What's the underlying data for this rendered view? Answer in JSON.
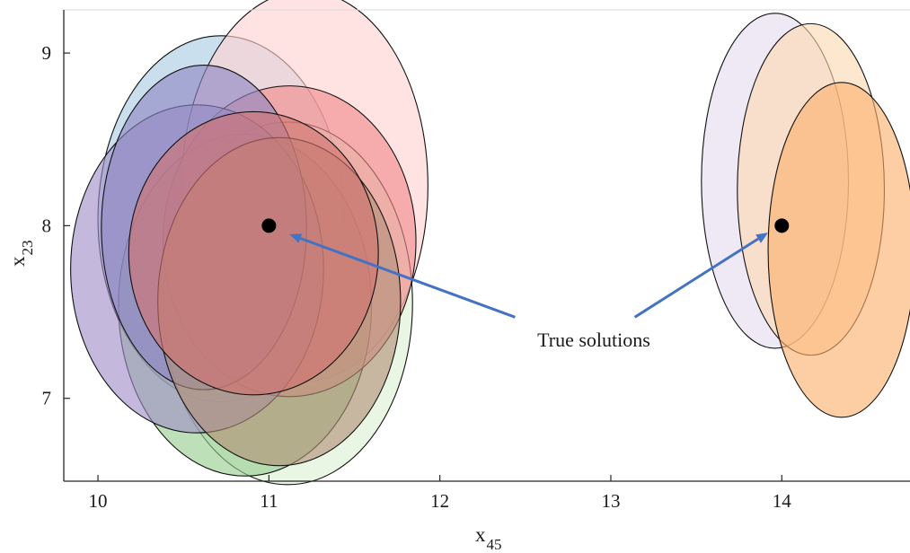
{
  "chart_data": {
    "type": "scatter",
    "title": "",
    "xlabel": {
      "base": "x",
      "sub": "45"
    },
    "ylabel": {
      "base": "x",
      "sub": "23"
    },
    "xlim": [
      9.8,
      14.75
    ],
    "ylim": [
      6.52,
      9.25
    ],
    "xticks": [
      10,
      11,
      12,
      13,
      14
    ],
    "yticks": [
      7,
      8,
      9
    ],
    "xtick_labels": [
      "10",
      "11",
      "12",
      "13",
      "14"
    ],
    "ytick_labels": [
      "7",
      "8",
      "9"
    ],
    "grid": false,
    "ellipses": [
      {
        "cx": 10.72,
        "cy": 8.04,
        "rx": 0.72,
        "ry": 1.06,
        "fill": "#a9cbe2"
      },
      {
        "cx": 11.21,
        "cy": 8.23,
        "rx": 0.72,
        "ry": 1.13,
        "fill": "#ffd2d2"
      },
      {
        "cx": 11.11,
        "cy": 7.55,
        "rx": 0.73,
        "ry": 1.05,
        "fill": "#dcf0d4"
      },
      {
        "cx": 10.86,
        "cy": 7.54,
        "rx": 0.74,
        "ry": 0.99,
        "fill": "#96cd8e"
      },
      {
        "cx": 11.12,
        "cy": 7.91,
        "rx": 0.74,
        "ry": 0.9,
        "fill": "#f18a8a"
      },
      {
        "cx": 10.58,
        "cy": 7.75,
        "rx": 0.74,
        "ry": 0.95,
        "fill": "#a08ec6"
      },
      {
        "cx": 10.62,
        "cy": 7.99,
        "rx": 0.6,
        "ry": 0.94,
        "fill": "#8e86c4"
      },
      {
        "cx": 11.06,
        "cy": 7.56,
        "rx": 0.71,
        "ry": 0.95,
        "fill": "#b28f78"
      },
      {
        "cx": 10.91,
        "cy": 7.84,
        "rx": 0.73,
        "ry": 0.82,
        "fill": "#d2726f"
      },
      {
        "cx": 13.96,
        "cy": 8.26,
        "rx": 0.43,
        "ry": 0.97,
        "fill": "#e4dcef"
      },
      {
        "cx": 14.17,
        "cy": 8.21,
        "rx": 0.43,
        "ry": 0.96,
        "fill": "#fcd9b2"
      },
      {
        "cx": 14.35,
        "cy": 7.86,
        "rx": 0.43,
        "ry": 0.97,
        "fill": "#fbb06c"
      }
    ],
    "points": [
      {
        "x": 11,
        "y": 8
      },
      {
        "x": 14,
        "y": 8
      }
    ],
    "annotation": {
      "text": "True solutions",
      "x": 12.9,
      "y": 7.3,
      "arrows": [
        {
          "from": [
            12.44,
            7.47
          ],
          "to": [
            11.12,
            7.95
          ]
        },
        {
          "from": [
            13.14,
            7.47
          ],
          "to": [
            13.92,
            7.96
          ]
        }
      ],
      "arrow_color": "#4472c4"
    }
  }
}
